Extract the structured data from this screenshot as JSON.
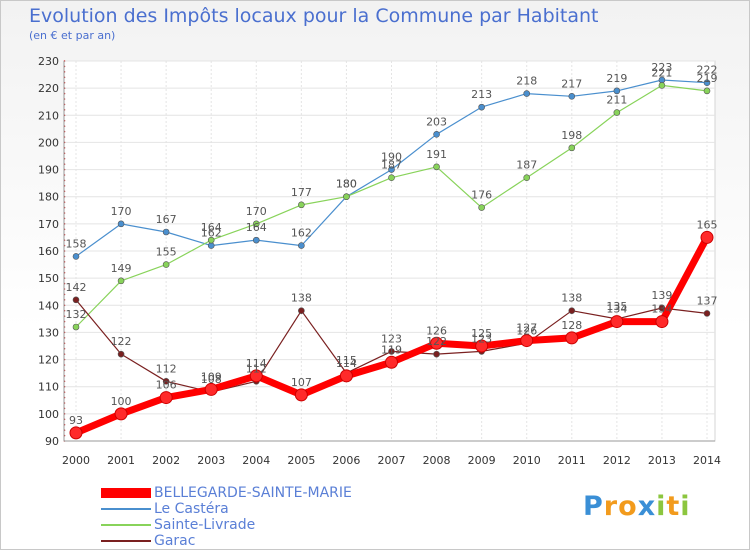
{
  "header": {
    "title": "Evolution des Impôts locaux pour la Commune par Habitant",
    "subtitle": "(en € et par an)"
  },
  "brand": {
    "letters": [
      "P",
      "r",
      "o",
      "x",
      "i",
      "t",
      "i"
    ],
    "colors": [
      "#3a8fd6",
      "#f29b1d",
      "#f29b1d",
      "#3a8fd6",
      "#8cc63f",
      "#f29b1d",
      "#8cc63f"
    ]
  },
  "chart_data": {
    "type": "line",
    "title": "Evolution des Impôts locaux pour la Commune par Habitant",
    "subtitle": "(en € et par an)",
    "xlabel": "",
    "ylabel": "",
    "x": [
      2000,
      2001,
      2002,
      2003,
      2004,
      2005,
      2006,
      2007,
      2008,
      2009,
      2010,
      2011,
      2012,
      2013,
      2014
    ],
    "x_tick_labels": [
      "2000",
      "2001",
      "2002",
      "2003",
      "2004",
      "2005",
      "2006",
      "2007",
      "2008",
      "2009",
      "2010",
      "2011",
      "2012",
      "2013",
      "2014"
    ],
    "ylim": [
      90,
      230
    ],
    "y_ticks": [
      90,
      100,
      110,
      120,
      130,
      140,
      150,
      160,
      170,
      180,
      190,
      200,
      210,
      220,
      230
    ],
    "grid": true,
    "legend_position": "bottom-left",
    "series": [
      {
        "name": "BELLEGARDE-SAINTE-MARIE",
        "color": "#ff0000",
        "values": [
          93,
          100,
          106,
          109,
          114,
          107,
          114,
          119,
          126,
          125,
          127,
          128,
          134,
          134,
          165
        ],
        "labels": [
          "93",
          "100",
          "106",
          "109",
          "114",
          "107",
          "114",
          "119",
          "126",
          "125",
          "127",
          "128",
          "134",
          "134",
          "165"
        ]
      },
      {
        "name": "Le Castéra",
        "color": "#4a8fce",
        "values": [
          158,
          170,
          167,
          162,
          164,
          162,
          180,
          190,
          203,
          213,
          218,
          217,
          219,
          223,
          222
        ],
        "labels": [
          "158",
          "170",
          "167",
          "162",
          "164",
          "162",
          "180",
          "190",
          "203",
          "213",
          "218",
          "217",
          "219",
          "223",
          "222"
        ]
      },
      {
        "name": "Sainte-Livrade",
        "color": "#88d35a",
        "values": [
          132,
          149,
          155,
          164,
          170,
          177,
          180,
          187,
          191,
          176,
          187,
          198,
          211,
          221,
          219
        ],
        "labels": [
          "132",
          "149",
          "155",
          "164",
          "170",
          "177",
          "180",
          "187",
          "191",
          "176",
          "187",
          "198",
          "211",
          "221",
          "219"
        ]
      },
      {
        "name": "Garac",
        "color": "#7a2020",
        "values": [
          142,
          122,
          112,
          108,
          112,
          138,
          115,
          123,
          122,
          123,
          126,
          138,
          135,
          139,
          137
        ],
        "labels": [
          "142",
          "122",
          "112",
          "108",
          "112",
          "138",
          "115",
          "123",
          "122",
          "123",
          "126",
          "138",
          "135",
          "139",
          "137"
        ]
      }
    ]
  }
}
